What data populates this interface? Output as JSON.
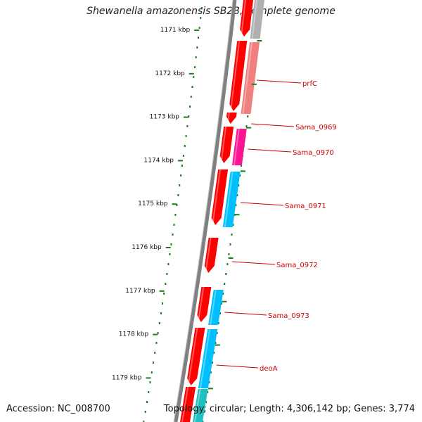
{
  "title": "Shewanella amazonensis SB2B, complete genome",
  "footer": {
    "accession": "Accession: NC_008700",
    "summary": "Topology: circular; Length: 4,306,142 bp; Genes: 3,774"
  },
  "kbp_ticks": [
    {
      "label": "1171 kbp"
    },
    {
      "label": "1172 kbp"
    },
    {
      "label": "1173 kbp"
    },
    {
      "label": "1174 kbp"
    },
    {
      "label": "1175 kbp"
    },
    {
      "label": "1176 kbp"
    },
    {
      "label": "1177 kbp"
    },
    {
      "label": "1178 kbp"
    },
    {
      "label": "1179 kbp"
    }
  ],
  "gene_labels": [
    {
      "name": "prfC"
    },
    {
      "name": "Sama_0969"
    },
    {
      "name": "Sama_0970"
    },
    {
      "name": "Sama_0971"
    },
    {
      "name": "Sama_0972"
    },
    {
      "name": "Sama_0973"
    },
    {
      "name": "deoA"
    }
  ],
  "colors": {
    "backbone": "#808080",
    "cds_red": "#ff0000",
    "prfC_pink": "#f08080",
    "sama0970_magenta": "#ff1493",
    "blue_gene": "#00bfff",
    "grey_gene": "#b0b0b0",
    "tick_green": "#1a7f1a",
    "label_red": "#cc0000"
  }
}
